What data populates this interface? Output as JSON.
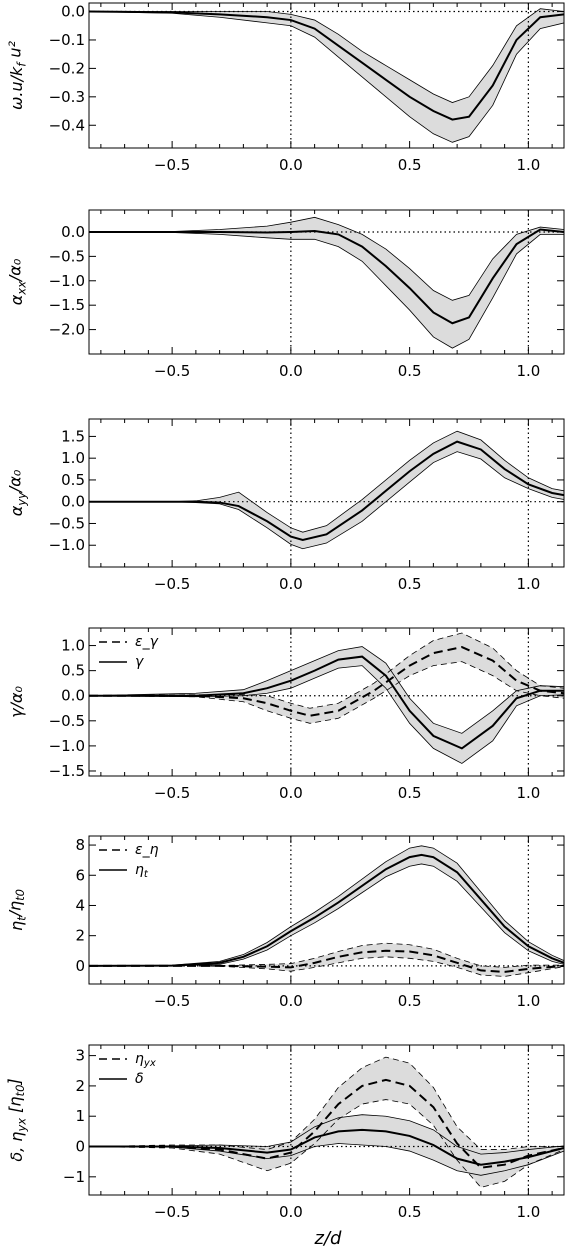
{
  "figure": {
    "xlabel": "z/d"
  },
  "chart_data": [
    {
      "type": "line",
      "ylabel": "ω.u/k_f u²",
      "xlim": [
        -0.85,
        1.15
      ],
      "ylim": [
        -0.48,
        0.03
      ],
      "xticks": [
        -0.5,
        0.0,
        0.5,
        1.0
      ],
      "xtick_labels": [
        "−0.5",
        "0.0",
        "0.5",
        "1.0"
      ],
      "yticks": [
        0.0,
        -0.1,
        -0.2,
        -0.3,
        -0.4
      ],
      "ytick_labels": [
        "0.0",
        "−0.1",
        "−0.2",
        "−0.3",
        "−0.4"
      ],
      "vlines": [
        0.0,
        1.0
      ],
      "hlines": [
        0.0
      ],
      "legend": [],
      "series": [
        {
          "style": "solid",
          "x": [
            -0.85,
            -0.5,
            -0.3,
            -0.1,
            0.0,
            0.1,
            0.2,
            0.3,
            0.4,
            0.5,
            0.6,
            0.68,
            0.75,
            0.85,
            0.95,
            1.05,
            1.15
          ],
          "y": [
            0.0,
            -0.003,
            -0.01,
            -0.02,
            -0.03,
            -0.06,
            -0.12,
            -0.18,
            -0.24,
            -0.3,
            -0.35,
            -0.38,
            -0.37,
            -0.26,
            -0.1,
            -0.02,
            -0.01
          ],
          "band_low": [
            0.0,
            -0.006,
            -0.02,
            -0.04,
            -0.05,
            -0.09,
            -0.16,
            -0.23,
            -0.3,
            -0.37,
            -0.43,
            -0.46,
            -0.44,
            -0.33,
            -0.15,
            -0.06,
            -0.04
          ],
          "band_high": [
            0.0,
            0.0,
            0.0,
            0.0,
            -0.01,
            -0.03,
            -0.08,
            -0.14,
            -0.19,
            -0.24,
            -0.29,
            -0.32,
            -0.3,
            -0.19,
            -0.05,
            0.01,
            0.0
          ]
        }
      ]
    },
    {
      "type": "line",
      "ylabel": "α_xx/α₀",
      "xlim": [
        -0.85,
        1.15
      ],
      "ylim": [
        -2.5,
        0.45
      ],
      "xticks": [
        -0.5,
        0.0,
        0.5,
        1.0
      ],
      "xtick_labels": [
        "−0.5",
        "0.0",
        "0.5",
        "1.0"
      ],
      "yticks": [
        0.0,
        -0.5,
        -1.0,
        -1.5,
        -2.0
      ],
      "ytick_labels": [
        "0.0",
        "−0.5",
        "−1.0",
        "−1.5",
        "−2.0"
      ],
      "vlines": [
        0.0,
        1.0
      ],
      "hlines": [
        0.0
      ],
      "legend": [],
      "series": [
        {
          "style": "solid",
          "x": [
            -0.85,
            -0.5,
            -0.3,
            -0.1,
            0.0,
            0.1,
            0.2,
            0.3,
            0.4,
            0.5,
            0.6,
            0.68,
            0.75,
            0.85,
            0.95,
            1.05,
            1.15
          ],
          "y": [
            0.0,
            0.0,
            0.0,
            -0.01,
            0.0,
            0.02,
            -0.05,
            -0.3,
            -0.7,
            -1.15,
            -1.65,
            -1.87,
            -1.75,
            -0.95,
            -0.25,
            0.05,
            0.0
          ],
          "band_low": [
            0.0,
            -0.01,
            -0.05,
            -0.12,
            -0.15,
            -0.15,
            -0.3,
            -0.6,
            -1.1,
            -1.6,
            -2.15,
            -2.38,
            -2.2,
            -1.35,
            -0.45,
            -0.05,
            -0.05
          ],
          "band_high": [
            0.0,
            0.01,
            0.05,
            0.12,
            0.2,
            0.3,
            0.15,
            -0.05,
            -0.35,
            -0.75,
            -1.2,
            -1.4,
            -1.3,
            -0.55,
            -0.05,
            0.1,
            0.05
          ]
        }
      ]
    },
    {
      "type": "line",
      "ylabel": "α_yy/α₀",
      "xlim": [
        -0.85,
        1.15
      ],
      "ylim": [
        -1.5,
        1.9
      ],
      "xticks": [
        -0.5,
        0.0,
        0.5,
        1.0
      ],
      "xtick_labels": [
        "−0.5",
        "0.0",
        "0.5",
        "1.0"
      ],
      "yticks": [
        1.5,
        1.0,
        0.5,
        0.0,
        -0.5,
        -1.0
      ],
      "ytick_labels": [
        "1.5",
        "1.0",
        "0.5",
        "0.0",
        "−0.5",
        "−1.0"
      ],
      "vlines": [
        0.0,
        1.0
      ],
      "hlines": [
        0.0
      ],
      "legend": [],
      "series": [
        {
          "style": "solid",
          "x": [
            -0.85,
            -0.5,
            -0.4,
            -0.3,
            -0.22,
            -0.1,
            0.0,
            0.05,
            0.15,
            0.3,
            0.5,
            0.6,
            0.7,
            0.8,
            0.9,
            1.0,
            1.1,
            1.15
          ],
          "y": [
            0.0,
            0.0,
            0.0,
            -0.02,
            -0.1,
            -0.45,
            -0.8,
            -0.88,
            -0.75,
            -0.2,
            0.7,
            1.1,
            1.38,
            1.2,
            0.75,
            0.4,
            0.2,
            0.15
          ],
          "band_low": [
            0.0,
            0.0,
            -0.02,
            -0.05,
            -0.18,
            -0.6,
            -0.98,
            -1.08,
            -0.95,
            -0.45,
            0.45,
            0.9,
            1.15,
            0.98,
            0.55,
            0.3,
            0.1,
            0.05
          ],
          "band_high": [
            0.0,
            0.0,
            0.02,
            0.1,
            0.22,
            -0.25,
            -0.6,
            -0.7,
            -0.55,
            0.05,
            0.95,
            1.35,
            1.62,
            1.42,
            0.95,
            0.55,
            0.3,
            0.25
          ]
        }
      ]
    },
    {
      "type": "line",
      "ylabel": "γ/α₀",
      "xlim": [
        -0.85,
        1.15
      ],
      "ylim": [
        -1.6,
        1.35
      ],
      "xticks": [
        -0.5,
        0.0,
        0.5,
        1.0
      ],
      "xtick_labels": [
        "−0.5",
        "0.0",
        "0.5",
        "1.0"
      ],
      "yticks": [
        1.0,
        0.5,
        0.0,
        -0.5,
        -1.0,
        -1.5
      ],
      "ytick_labels": [
        "1.0",
        "0.5",
        "0.0",
        "−0.5",
        "−1.0",
        "−1.5"
      ],
      "vlines": [
        0.0,
        1.0
      ],
      "hlines": [
        0.0
      ],
      "legend": [
        {
          "label": "ε_γ",
          "style": "dashed"
        },
        {
          "label": "γ",
          "style": "solid"
        }
      ],
      "series": [
        {
          "name": "ε_γ",
          "style": "dashed",
          "x": [
            -0.85,
            -0.4,
            -0.2,
            -0.1,
            0.0,
            0.08,
            0.2,
            0.35,
            0.5,
            0.6,
            0.72,
            0.85,
            0.95,
            1.05,
            1.15
          ],
          "y": [
            0.0,
            0.0,
            -0.05,
            -0.15,
            -0.3,
            -0.4,
            -0.3,
            0.1,
            0.6,
            0.85,
            0.97,
            0.7,
            0.3,
            0.1,
            0.05
          ],
          "band_low": [
            0.0,
            -0.02,
            -0.12,
            -0.3,
            -0.45,
            -0.55,
            -0.45,
            -0.05,
            0.4,
            0.6,
            0.68,
            0.4,
            0.1,
            0.0,
            -0.05
          ],
          "band_high": [
            0.0,
            0.02,
            0.02,
            0.0,
            -0.15,
            -0.25,
            -0.15,
            0.25,
            0.8,
            1.1,
            1.25,
            0.95,
            0.5,
            0.2,
            0.15
          ]
        },
        {
          "name": "γ",
          "style": "solid",
          "x": [
            -0.85,
            -0.4,
            -0.2,
            -0.1,
            0.0,
            0.1,
            0.2,
            0.3,
            0.4,
            0.5,
            0.6,
            0.72,
            0.85,
            0.95,
            1.05,
            1.15
          ],
          "y": [
            0.0,
            0.0,
            0.05,
            0.15,
            0.3,
            0.5,
            0.72,
            0.78,
            0.4,
            -0.3,
            -0.8,
            -1.05,
            -0.6,
            -0.05,
            0.1,
            0.1
          ],
          "band_low": [
            0.0,
            -0.02,
            0.0,
            0.05,
            0.15,
            0.35,
            0.55,
            0.6,
            0.15,
            -0.55,
            -1.05,
            -1.35,
            -0.9,
            -0.2,
            0.0,
            0.02
          ],
          "band_high": [
            0.0,
            0.05,
            0.12,
            0.3,
            0.5,
            0.7,
            0.9,
            0.98,
            0.65,
            -0.05,
            -0.55,
            -0.75,
            -0.3,
            0.1,
            0.2,
            0.18
          ]
        }
      ]
    },
    {
      "type": "line",
      "ylabel": "η_t/η_t0",
      "xlim": [
        -0.85,
        1.15
      ],
      "ylim": [
        -1.2,
        8.6
      ],
      "xticks": [
        -0.5,
        0.0,
        0.5,
        1.0
      ],
      "xtick_labels": [
        "−0.5",
        "0.0",
        "0.5",
        "1.0"
      ],
      "yticks": [
        8,
        6,
        4,
        2,
        0
      ],
      "ytick_labels": [
        "8",
        "6",
        "4",
        "2",
        "0"
      ],
      "vlines": [
        0.0,
        1.0
      ],
      "hlines": [
        0.0
      ],
      "legend": [
        {
          "label": "ε_η",
          "style": "dashed"
        },
        {
          "label": "η_t",
          "style": "solid"
        }
      ],
      "series": [
        {
          "name": "ε_η",
          "style": "dashed",
          "x": [
            -0.85,
            -0.3,
            -0.1,
            0.0,
            0.1,
            0.2,
            0.3,
            0.4,
            0.5,
            0.6,
            0.7,
            0.8,
            0.9,
            1.0,
            1.15
          ],
          "y": [
            0.0,
            0.0,
            -0.05,
            -0.1,
            0.2,
            0.6,
            0.9,
            1.0,
            0.95,
            0.7,
            0.2,
            -0.3,
            -0.4,
            -0.2,
            0.0
          ],
          "band_low": [
            0.0,
            -0.02,
            -0.2,
            -0.35,
            -0.1,
            0.2,
            0.5,
            0.6,
            0.5,
            0.3,
            -0.1,
            -0.6,
            -0.7,
            -0.45,
            -0.05
          ],
          "band_high": [
            0.0,
            0.02,
            0.1,
            0.15,
            0.5,
            0.95,
            1.35,
            1.5,
            1.4,
            1.1,
            0.5,
            0.0,
            -0.1,
            0.05,
            0.05
          ]
        },
        {
          "name": "η_t",
          "style": "solid",
          "x": [
            -0.85,
            -0.5,
            -0.3,
            -0.2,
            -0.1,
            0.0,
            0.1,
            0.2,
            0.3,
            0.4,
            0.5,
            0.55,
            0.6,
            0.7,
            0.8,
            0.9,
            1.0,
            1.1,
            1.15
          ],
          "y": [
            0.0,
            0.02,
            0.2,
            0.6,
            1.3,
            2.3,
            3.2,
            4.2,
            5.3,
            6.4,
            7.2,
            7.35,
            7.2,
            6.2,
            4.4,
            2.6,
            1.3,
            0.5,
            0.2
          ],
          "band_low": [
            0.0,
            0.0,
            0.1,
            0.45,
            1.05,
            2.0,
            2.85,
            3.8,
            4.85,
            5.9,
            6.6,
            6.75,
            6.6,
            5.6,
            3.9,
            2.2,
            1.0,
            0.3,
            0.1
          ],
          "band_high": [
            0.0,
            0.05,
            0.3,
            0.75,
            1.55,
            2.6,
            3.55,
            4.6,
            5.75,
            6.9,
            7.8,
            7.95,
            7.8,
            6.8,
            4.9,
            3.0,
            1.6,
            0.7,
            0.35
          ]
        }
      ]
    },
    {
      "type": "line",
      "ylabel": "δ, η_yx [η_t0]",
      "xlim": [
        -0.85,
        1.15
      ],
      "ylim": [
        -1.6,
        3.35
      ],
      "xticks": [
        -0.5,
        0.0,
        0.5,
        1.0
      ],
      "xtick_labels": [
        "−0.5",
        "0.0",
        "0.5",
        "1.0"
      ],
      "yticks": [
        3,
        2,
        1,
        0,
        -1
      ],
      "ytick_labels": [
        "3",
        "2",
        "1",
        "0",
        "−1"
      ],
      "vlines": [
        0.0,
        1.0
      ],
      "hlines": [
        0.0
      ],
      "legend": [
        {
          "label": "η_yx",
          "style": "dashed"
        },
        {
          "label": "δ",
          "style": "solid"
        }
      ],
      "series": [
        {
          "name": "η_yx",
          "style": "dashed",
          "x": [
            -0.85,
            -0.5,
            -0.3,
            -0.1,
            0.0,
            0.1,
            0.2,
            0.3,
            0.4,
            0.5,
            0.6,
            0.7,
            0.8,
            0.9,
            1.0,
            1.15
          ],
          "y": [
            0.0,
            0.0,
            -0.1,
            -0.4,
            -0.2,
            0.5,
            1.4,
            2.0,
            2.2,
            2.0,
            1.3,
            0.1,
            -0.7,
            -0.6,
            -0.3,
            -0.05
          ],
          "band_low": [
            0.0,
            -0.05,
            -0.25,
            -0.8,
            -0.55,
            0.1,
            0.9,
            1.4,
            1.55,
            1.4,
            0.7,
            -0.45,
            -1.35,
            -1.15,
            -0.6,
            -0.1
          ],
          "band_high": [
            0.0,
            0.05,
            0.05,
            -0.1,
            0.15,
            0.9,
            1.95,
            2.6,
            2.95,
            2.75,
            1.95,
            0.65,
            -0.1,
            -0.1,
            0.0,
            0.0
          ]
        },
        {
          "name": "δ",
          "style": "solid",
          "x": [
            -0.85,
            -0.5,
            -0.3,
            -0.1,
            0.0,
            0.1,
            0.2,
            0.3,
            0.4,
            0.5,
            0.6,
            0.7,
            0.8,
            0.9,
            1.0,
            1.15
          ],
          "y": [
            0.0,
            0.0,
            -0.05,
            -0.2,
            -0.1,
            0.3,
            0.5,
            0.55,
            0.5,
            0.35,
            0.05,
            -0.4,
            -0.6,
            -0.5,
            -0.35,
            -0.05
          ],
          "band_low": [
            0.0,
            -0.02,
            -0.15,
            -0.4,
            -0.3,
            0.0,
            0.1,
            0.05,
            0.0,
            -0.15,
            -0.45,
            -0.8,
            -0.95,
            -0.8,
            -0.6,
            -0.15
          ],
          "band_high": [
            0.0,
            0.02,
            0.05,
            0.0,
            0.15,
            0.65,
            0.95,
            1.05,
            1.0,
            0.85,
            0.55,
            0.0,
            -0.25,
            -0.2,
            -0.1,
            0.02
          ]
        }
      ]
    }
  ]
}
